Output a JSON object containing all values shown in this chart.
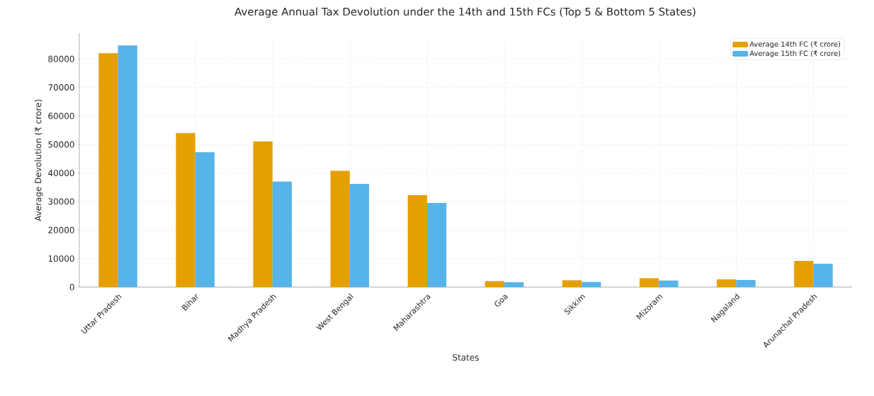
{
  "chart_data": {
    "type": "bar",
    "title": "Average Annual Tax Devolution under the 14th and 15th FCs (Top 5 & Bottom 5 States)",
    "xlabel": "States",
    "ylabel": "Average Devolution (₹ crore)",
    "categories": [
      "Uttar Pradesh",
      "Bihar",
      "Madhya Pradesh",
      "West Bengal",
      "Maharashtra",
      "Goa",
      "Sikkim",
      "Mizoram",
      "Nagaland",
      "Arunachal Pradesh"
    ],
    "series": [
      {
        "name": "Average 14th FC (₹ crore)",
        "color": "#e69f00",
        "values": [
          82000,
          54000,
          51100,
          40800,
          32200,
          2100,
          2400,
          3100,
          2700,
          9200
        ]
      },
      {
        "name": "Average 15th FC (₹ crore)",
        "color": "#56b4e9",
        "values": [
          84700,
          47300,
          37000,
          36200,
          29500,
          1700,
          1800,
          2300,
          2500,
          8200
        ]
      }
    ],
    "ylim": [
      0,
      89000
    ],
    "yticks": [
      0,
      10000,
      20000,
      30000,
      40000,
      50000,
      60000,
      70000,
      80000
    ],
    "grid": true,
    "legend": "top right"
  }
}
